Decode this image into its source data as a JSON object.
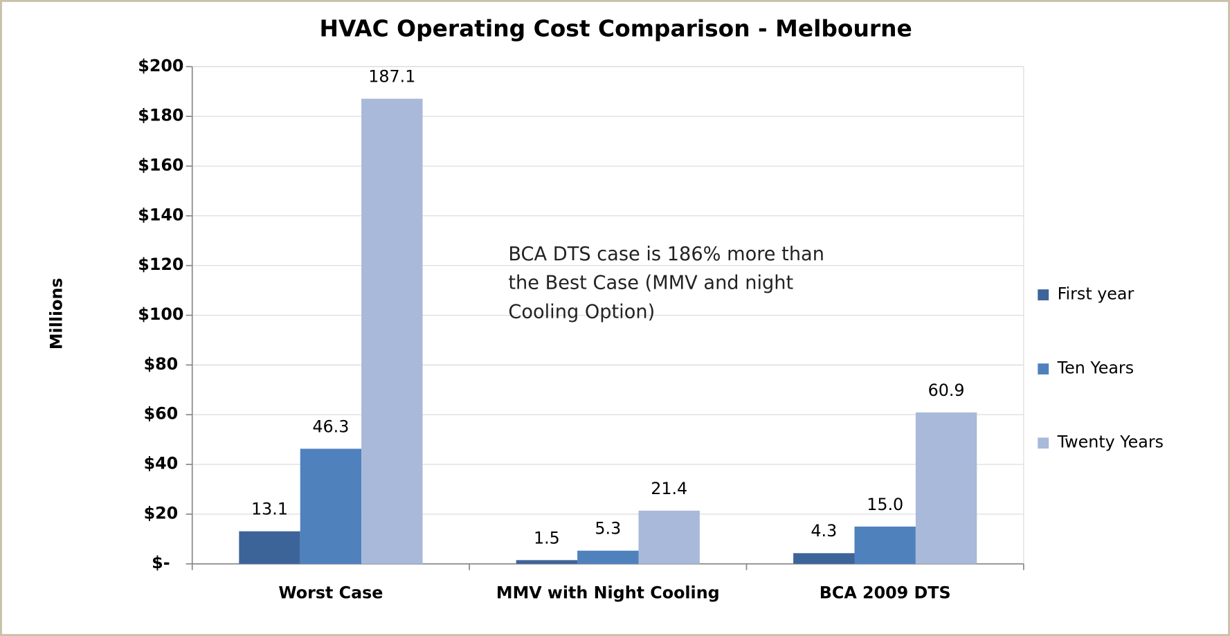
{
  "chart_data": {
    "type": "bar",
    "title": "HVAC Operating Cost Comparison  - Melbourne",
    "y_label": "Millions",
    "annotation": [
      "BCA DTS case is 186% more than",
      "the Best Case (MMV and night",
      "Cooling Option)"
    ],
    "categories": [
      "Worst Case",
      "MMV with Night Cooling",
      "BCA 2009 DTS"
    ],
    "series": [
      {
        "name": "First year",
        "color": "#3d6499",
        "values": [
          13.1,
          1.5,
          4.3
        ],
        "value_labels": [
          "13.1",
          "1.5",
          "4.3"
        ]
      },
      {
        "name": "Ten Years",
        "color": "#4f81bd",
        "values": [
          46.3,
          5.3,
          15.0
        ],
        "value_labels": [
          "46.3",
          "5.3",
          "15.0"
        ]
      },
      {
        "name": "Twenty Years",
        "color": "#a8b9d9",
        "values": [
          187.1,
          21.4,
          60.9
        ],
        "value_labels": [
          "187.1",
          "21.4",
          "60.9"
        ]
      }
    ],
    "ylim": [
      0,
      200
    ],
    "yticks": [
      {
        "value": 0,
        "label": "$-"
      },
      {
        "value": 20,
        "label": "$20"
      },
      {
        "value": 40,
        "label": "$40"
      },
      {
        "value": 60,
        "label": "$60"
      },
      {
        "value": 80,
        "label": "$80"
      },
      {
        "value": 100,
        "label": "$100"
      },
      {
        "value": 120,
        "label": "$120"
      },
      {
        "value": 140,
        "label": "$140"
      },
      {
        "value": 160,
        "label": "$160"
      },
      {
        "value": 180,
        "label": "$180"
      },
      {
        "value": 200,
        "label": "$200"
      }
    ],
    "grid": true,
    "legend": "right"
  }
}
